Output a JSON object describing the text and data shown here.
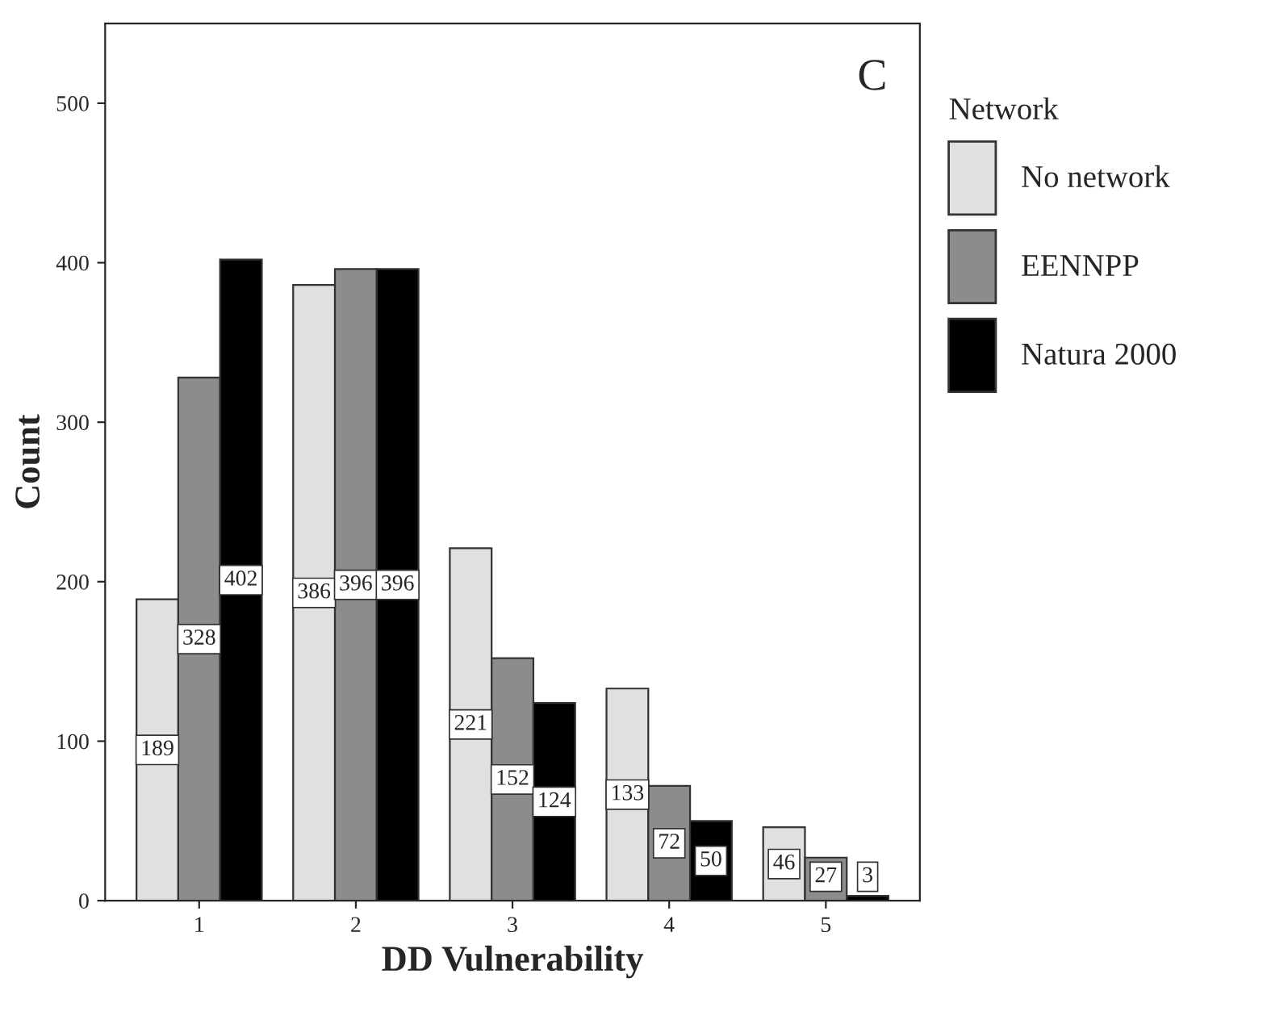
{
  "chart_data": {
    "type": "bar",
    "xlabel": "DD Vulnerability",
    "ylabel": "Count",
    "legend_title": "Network",
    "categories": [
      "1",
      "2",
      "3",
      "4",
      "5"
    ],
    "series": [
      {
        "name": "No network",
        "color": "#e0e0e0",
        "values": [
          189,
          386,
          221,
          133,
          46
        ]
      },
      {
        "name": "EENNPP",
        "color": "#8c8c8c",
        "values": [
          328,
          396,
          152,
          72,
          27
        ]
      },
      {
        "name": "Natura 2000",
        "color": "#000000",
        "values": [
          402,
          396,
          124,
          50,
          3
        ]
      }
    ],
    "ylim": [
      0,
      550
    ],
    "yticks": [
      0,
      100,
      200,
      300,
      400,
      500
    ],
    "annotations": [
      "C"
    ],
    "data_labels": true,
    "legend": "right",
    "grid": false
  }
}
